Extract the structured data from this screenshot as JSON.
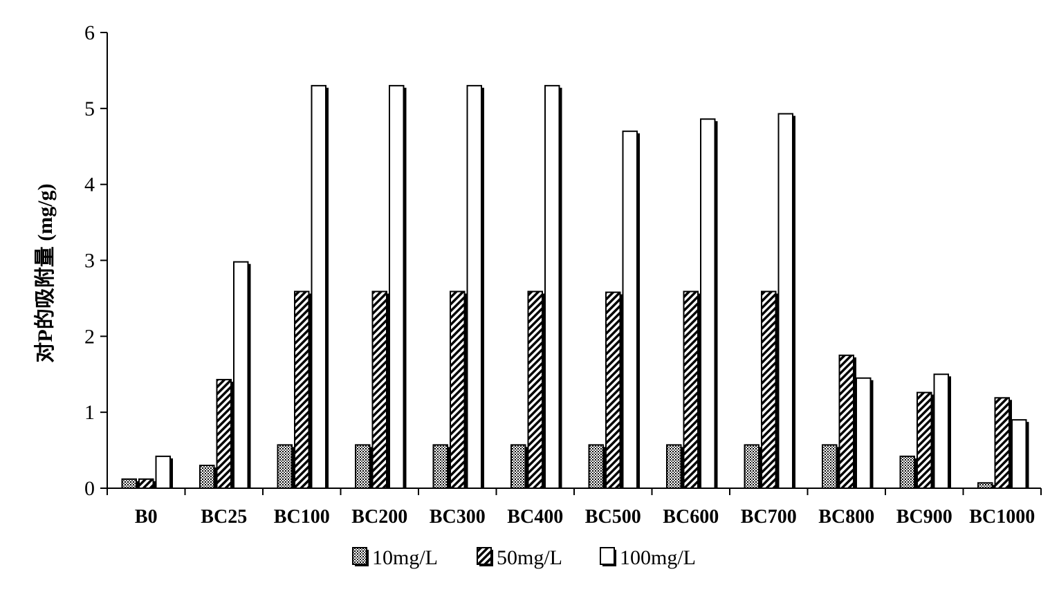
{
  "chart_data": {
    "type": "bar",
    "categories": [
      "B0",
      "BC25",
      "BC100",
      "BC200",
      "BC300",
      "BC400",
      "BC500",
      "BC600",
      "BC700",
      "BC800",
      "BC900",
      "BC1000"
    ],
    "series": [
      {
        "name": "10mg/L",
        "pattern": "dots",
        "values": [
          0.12,
          0.3,
          0.57,
          0.57,
          0.57,
          0.57,
          0.57,
          0.57,
          0.57,
          0.57,
          0.42,
          0.07
        ]
      },
      {
        "name": "50mg/L",
        "pattern": "diagonal",
        "values": [
          0.12,
          1.43,
          2.59,
          2.59,
          2.59,
          2.59,
          2.58,
          2.59,
          2.59,
          1.75,
          1.26,
          1.19
        ]
      },
      {
        "name": "100mg/L",
        "pattern": "white",
        "values": [
          0.42,
          2.98,
          5.3,
          5.3,
          5.3,
          5.3,
          4.7,
          4.86,
          4.93,
          1.45,
          1.5,
          0.9
        ]
      }
    ],
    "title": "",
    "xlabel": "",
    "ylabel": "对P的吸附量 (mg/g)",
    "ylim": [
      0,
      6
    ],
    "yticks": [
      "0",
      "1",
      "2",
      "3",
      "4",
      "5",
      "6"
    ],
    "grid": false,
    "legend_position": "bottom"
  }
}
